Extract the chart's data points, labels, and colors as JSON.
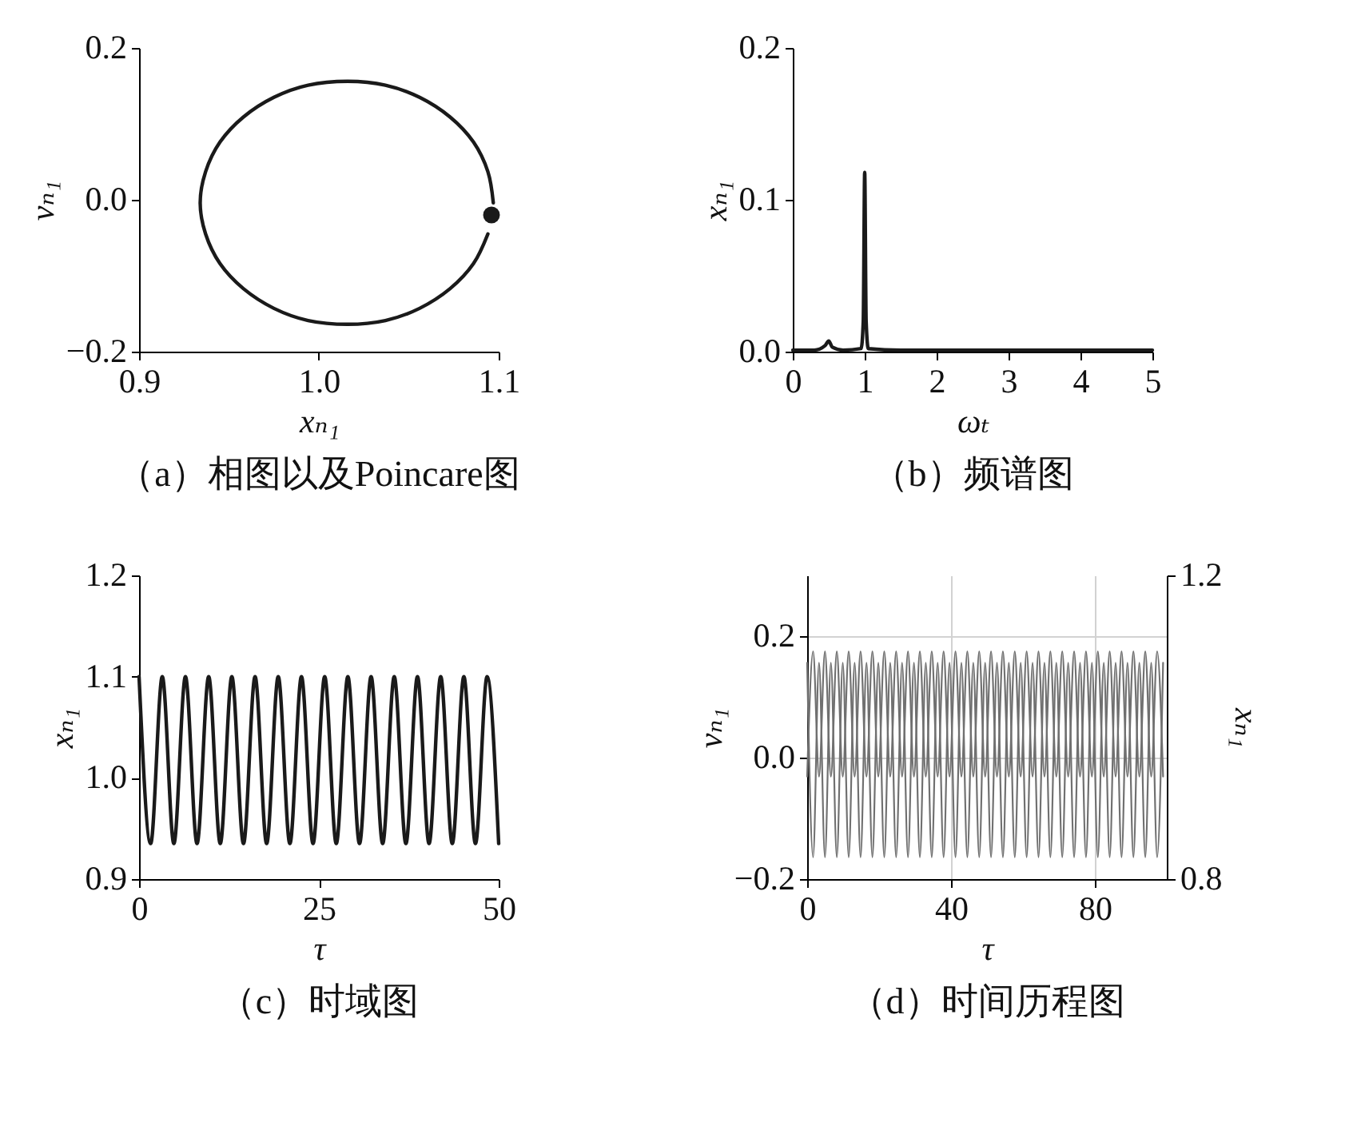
{
  "chart_data": [
    {
      "type": "line",
      "title": "（a）相图以及Poincare图",
      "xlabel": "xₙ₁",
      "ylabel": "vₙ₁",
      "xlim": [
        0.9,
        1.1
      ],
      "ylim": [
        -0.2,
        0.2
      ],
      "xticks": [
        0.9,
        {
          "value": 1.0,
          "label": "1.0"
        },
        1.1
      ],
      "yticks": [
        {
          "value": -0.2,
          "label": "−0.2"
        },
        {
          "value": 0,
          "label": "0.0"
        },
        0.2
      ],
      "series": [
        {
          "type": "line",
          "color": "#1a1a1a",
          "x": [
            1.097,
            1.094,
            1.086,
            1.073,
            1.056,
            1.037,
            1.016,
            0.994,
            0.975,
            0.958,
            0.945,
            0.937,
            0.934,
            0.937,
            0.945,
            0.958,
            0.975,
            0.994,
            1.016,
            1.037,
            1.056,
            1.073,
            1.086,
            1.094
          ],
          "values": [
            -0.004,
            0.037,
            0.076,
            0.109,
            0.135,
            0.151,
            0.156,
            0.151,
            0.135,
            0.109,
            0.076,
            0.037,
            -0.004,
            -0.045,
            -0.084,
            -0.117,
            -0.143,
            -0.159,
            -0.164,
            -0.159,
            -0.143,
            -0.117,
            -0.084,
            -0.045
          ]
        },
        {
          "type": "scatter",
          "marker": "circle",
          "color": "#1a1a1a",
          "x": [
            1.096
          ],
          "values": [
            -0.02
          ]
        }
      ]
    },
    {
      "type": "line",
      "title": "（b）频谱图",
      "xlabel": "ωₜ",
      "ylabel": "xₙ₁",
      "xlim": [
        0,
        5
      ],
      "ylim": [
        0,
        0.2
      ],
      "xticks": [
        0,
        1,
        2,
        3,
        4,
        5
      ],
      "yticks": [
        {
          "value": 0,
          "label": "0.0"
        },
        0.1,
        0.2
      ],
      "series": [
        {
          "color": "#1a1a1a",
          "x": [
            0,
            0.3,
            0.45,
            0.5,
            0.55,
            0.7,
            0.95,
            0.98,
            1.0,
            1.02,
            1.05,
            1.5,
            2,
            3,
            4,
            5
          ],
          "values": [
            0.001,
            0.001,
            0.004,
            0.007,
            0.003,
            0.001,
            0.002,
            0.02,
            0.118,
            0.02,
            0.002,
            0.001,
            0.001,
            0.001,
            0.001,
            0.001
          ]
        }
      ]
    },
    {
      "type": "line",
      "title": "（c）时域图",
      "xlabel": "τ",
      "ylabel": "xₙ₁",
      "xlim": [
        0,
        50
      ],
      "ylim": [
        0.9,
        1.2
      ],
      "xticks": [
        0,
        25,
        50
      ],
      "yticks": [
        0.9,
        {
          "value": 1.0,
          "label": "1.0"
        },
        1.1,
        1.2
      ],
      "series": [
        {
          "color": "#1a1a1a",
          "x": [
            0,
            1.61,
            3.23,
            4.84,
            6.45,
            8.06,
            9.68,
            11.29,
            12.9,
            14.52,
            16.13,
            17.74,
            19.35,
            20.97,
            22.58,
            24.19,
            25.81,
            27.42,
            29.03,
            30.65,
            32.26,
            33.87,
            35.48,
            37.1,
            38.71,
            40.32,
            41.94,
            43.55,
            45.16,
            46.77,
            48.39,
            50
          ],
          "values": [
            1.1,
            0.935,
            1.1,
            0.935,
            1.1,
            0.935,
            1.1,
            0.935,
            1.1,
            0.935,
            1.1,
            0.935,
            1.1,
            0.935,
            1.1,
            0.935,
            1.1,
            0.935,
            1.1,
            0.935,
            1.1,
            0.935,
            1.1,
            0.935,
            1.1,
            0.935,
            1.1,
            0.935,
            1.1,
            0.935,
            1.1,
            0.935
          ]
        }
      ]
    },
    {
      "type": "line",
      "title": "（d）时间历程图",
      "xlabel": "τ",
      "ylabel": "vₙ₁",
      "y2label": "xₙ₁",
      "xlim": [
        0,
        100
      ],
      "ylim": [
        -0.2,
        0.3
      ],
      "y2lim": [
        0.8,
        1.2
      ],
      "xticks": [
        0,
        40,
        80
      ],
      "yticks": [
        {
          "value": -0.2,
          "label": "−0.2"
        },
        {
          "value": 0,
          "label": "0.0"
        },
        0.2
      ],
      "y2ticks": [
        0.8,
        1.2
      ],
      "grid": true,
      "x": [
        0,
        1.65,
        3.3,
        4.95,
        6.6,
        8.25,
        9.9,
        11.55,
        13.2,
        14.85,
        16.5,
        18.14,
        19.79,
        21.44,
        23.09,
        24.74,
        26.39,
        28.04,
        29.69,
        31.34,
        32.99,
        34.64,
        36.29,
        37.94,
        39.59,
        41.24,
        42.89,
        44.54,
        46.19,
        47.84,
        49.49,
        51.13,
        52.78,
        54.43,
        56.08,
        57.73,
        59.38,
        61.03,
        62.68,
        64.33,
        65.98,
        67.63,
        69.28,
        70.93,
        72.58,
        74.23,
        75.88,
        77.53,
        79.18,
        80.83,
        82.48,
        84.12,
        85.77,
        87.42,
        89.07,
        90.72,
        92.37,
        94.02,
        95.67,
        97.32,
        98.97
      ],
      "series": [
        {
          "color": "#707070",
          "values": [
            0.156,
            -0.164,
            0.156,
            -0.164,
            0.156,
            -0.164,
            0.156,
            -0.164,
            0.156,
            -0.164,
            0.156,
            -0.164,
            0.156,
            -0.164,
            0.156,
            -0.164,
            0.156,
            -0.164,
            0.156,
            -0.164,
            0.156,
            -0.164,
            0.156,
            -0.164,
            0.156,
            -0.164,
            0.156,
            -0.164,
            0.156,
            -0.164,
            0.156,
            -0.164,
            0.156,
            -0.164,
            0.156,
            -0.164,
            0.156,
            -0.164,
            0.156,
            -0.164,
            0.156,
            -0.164,
            0.156,
            -0.164,
            0.156,
            -0.164,
            0.156,
            -0.164,
            0.156,
            -0.164,
            0.156,
            -0.164,
            0.156,
            -0.164,
            0.156,
            -0.164,
            0.156,
            -0.164,
            0.156,
            -0.164,
            0.156
          ]
        },
        {
          "color": "#707070",
          "axis": "y2",
          "values": [
            0.935,
            1.1,
            0.935,
            1.1,
            0.935,
            1.1,
            0.935,
            1.1,
            0.935,
            1.1,
            0.935,
            1.1,
            0.935,
            1.1,
            0.935,
            1.1,
            0.935,
            1.1,
            0.935,
            1.1,
            0.935,
            1.1,
            0.935,
            1.1,
            0.935,
            1.1,
            0.935,
            1.1,
            0.935,
            1.1,
            0.935,
            1.1,
            0.935,
            1.1,
            0.935,
            1.1,
            0.935,
            1.1,
            0.935,
            1.1,
            0.935,
            1.1,
            0.935,
            1.1,
            0.935,
            1.1,
            0.935,
            1.1,
            0.935,
            1.1,
            0.935,
            1.1,
            0.935,
            1.1,
            0.935,
            1.1,
            0.935,
            1.1,
            0.935,
            1.1,
            0.935
          ]
        }
      ]
    }
  ]
}
